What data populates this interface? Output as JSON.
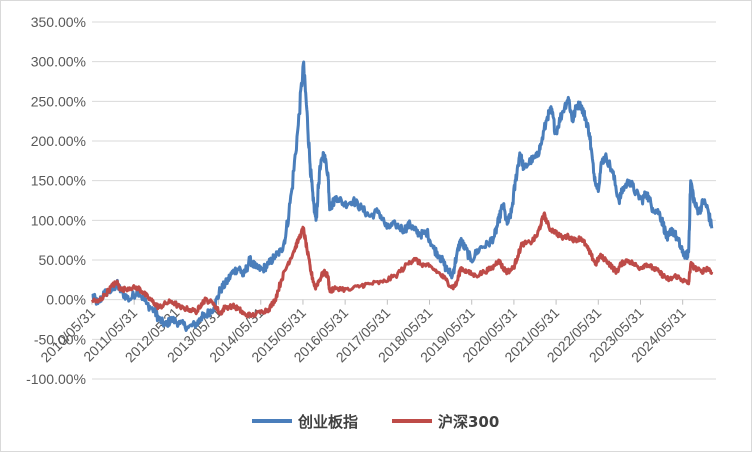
{
  "chart_data": {
    "type": "line",
    "title": "",
    "xlabel": "",
    "ylabel": "",
    "ylim": [
      -100,
      350
    ],
    "y_ticks": [
      "350.00%",
      "300.00%",
      "250.00%",
      "200.00%",
      "150.00%",
      "100.00%",
      "50.00%",
      "0.00%",
      "-50.00%",
      "-100.00%"
    ],
    "y_tick_values": [
      350,
      300,
      250,
      200,
      150,
      100,
      50,
      0,
      -50,
      -100
    ],
    "x_tick_labels": [
      "2010/05/31",
      "2011/05/31",
      "2012/05/31",
      "2013/05/31",
      "2014/05/31",
      "2015/05/31",
      "2016/05/31",
      "2017/05/31",
      "2018/05/31",
      "2019/05/31",
      "2020/05/31",
      "2021/05/31",
      "2022/05/31",
      "2023/05/31",
      "2024/05/31"
    ],
    "x_tick_years": [
      2010.41,
      2011.41,
      2012.41,
      2013.41,
      2014.41,
      2015.41,
      2016.41,
      2017.41,
      2018.41,
      2019.41,
      2020.41,
      2021.41,
      2022.41,
      2023.41,
      2024.41
    ],
    "xlim": [
      2010.41,
      2025.2
    ],
    "grid": "horizontal",
    "legend_position": "bottom",
    "series": [
      {
        "name": "创业板指",
        "color": "#4a7ebb",
        "points": [
          [
            2010.42,
            5
          ],
          [
            2010.55,
            -5
          ],
          [
            2010.7,
            8
          ],
          [
            2010.9,
            12
          ],
          [
            2011.0,
            20
          ],
          [
            2011.1,
            10
          ],
          [
            2011.3,
            0
          ],
          [
            2011.5,
            12
          ],
          [
            2011.7,
            -5
          ],
          [
            2011.9,
            -15
          ],
          [
            2012.0,
            -25
          ],
          [
            2012.15,
            -32
          ],
          [
            2012.3,
            -25
          ],
          [
            2012.5,
            -30
          ],
          [
            2012.7,
            -35
          ],
          [
            2012.9,
            -30
          ],
          [
            2013.0,
            -22
          ],
          [
            2013.1,
            -20
          ],
          [
            2013.3,
            -10
          ],
          [
            2013.45,
            12
          ],
          [
            2013.6,
            22
          ],
          [
            2013.75,
            35
          ],
          [
            2013.9,
            40
          ],
          [
            2014.0,
            30
          ],
          [
            2014.15,
            50
          ],
          [
            2014.3,
            40
          ],
          [
            2014.45,
            38
          ],
          [
            2014.6,
            45
          ],
          [
            2014.75,
            55
          ],
          [
            2014.9,
            62
          ],
          [
            2015.0,
            80
          ],
          [
            2015.15,
            140
          ],
          [
            2015.3,
            220
          ],
          [
            2015.42,
            298
          ],
          [
            2015.5,
            240
          ],
          [
            2015.58,
            170
          ],
          [
            2015.65,
            125
          ],
          [
            2015.72,
            100
          ],
          [
            2015.8,
            160
          ],
          [
            2015.9,
            185
          ],
          [
            2016.0,
            160
          ],
          [
            2016.05,
            115
          ],
          [
            2016.2,
            130
          ],
          [
            2016.4,
            120
          ],
          [
            2016.6,
            125
          ],
          [
            2016.8,
            115
          ],
          [
            2017.0,
            105
          ],
          [
            2017.2,
            112
          ],
          [
            2017.4,
            90
          ],
          [
            2017.6,
            95
          ],
          [
            2017.8,
            88
          ],
          [
            2017.95,
            95
          ],
          [
            2018.05,
            88
          ],
          [
            2018.2,
            82
          ],
          [
            2018.35,
            85
          ],
          [
            2018.5,
            65
          ],
          [
            2018.65,
            55
          ],
          [
            2018.8,
            40
          ],
          [
            2018.95,
            30
          ],
          [
            2019.05,
            55
          ],
          [
            2019.15,
            75
          ],
          [
            2019.25,
            65
          ],
          [
            2019.4,
            50
          ],
          [
            2019.6,
            65
          ],
          [
            2019.8,
            70
          ],
          [
            2019.95,
            80
          ],
          [
            2020.05,
            100
          ],
          [
            2020.15,
            120
          ],
          [
            2020.25,
            95
          ],
          [
            2020.35,
            110
          ],
          [
            2020.45,
            150
          ],
          [
            2020.55,
            185
          ],
          [
            2020.65,
            165
          ],
          [
            2020.8,
            175
          ],
          [
            2020.95,
            180
          ],
          [
            2021.05,
            195
          ],
          [
            2021.2,
            230
          ],
          [
            2021.3,
            240
          ],
          [
            2021.4,
            210
          ],
          [
            2021.55,
            235
          ],
          [
            2021.7,
            255
          ],
          [
            2021.8,
            225
          ],
          [
            2021.9,
            245
          ],
          [
            2022.0,
            245
          ],
          [
            2022.1,
            230
          ],
          [
            2022.2,
            210
          ],
          [
            2022.3,
            160
          ],
          [
            2022.4,
            140
          ],
          [
            2022.5,
            175
          ],
          [
            2022.6,
            180
          ],
          [
            2022.75,
            160
          ],
          [
            2022.9,
            125
          ],
          [
            2023.0,
            140
          ],
          [
            2023.15,
            150
          ],
          [
            2023.3,
            135
          ],
          [
            2023.45,
            125
          ],
          [
            2023.55,
            135
          ],
          [
            2023.7,
            115
          ],
          [
            2023.85,
            110
          ],
          [
            2023.95,
            95
          ],
          [
            2024.05,
            75
          ],
          [
            2024.15,
            90
          ],
          [
            2024.3,
            75
          ],
          [
            2024.4,
            60
          ],
          [
            2024.5,
            55
          ],
          [
            2024.55,
            60
          ],
          [
            2024.6,
            150
          ],
          [
            2024.7,
            120
          ],
          [
            2024.8,
            110
          ],
          [
            2024.9,
            125
          ],
          [
            2025.0,
            115
          ],
          [
            2025.1,
            90
          ]
        ]
      },
      {
        "name": "沪深300",
        "color": "#be4b48",
        "points": [
          [
            2010.42,
            0
          ],
          [
            2010.55,
            -3
          ],
          [
            2010.7,
            5
          ],
          [
            2010.9,
            18
          ],
          [
            2011.0,
            22
          ],
          [
            2011.1,
            12
          ],
          [
            2011.3,
            15
          ],
          [
            2011.5,
            15
          ],
          [
            2011.6,
            10
          ],
          [
            2011.75,
            2
          ],
          [
            2011.9,
            -5
          ],
          [
            2012.0,
            -10
          ],
          [
            2012.15,
            -5
          ],
          [
            2012.3,
            -2
          ],
          [
            2012.5,
            -10
          ],
          [
            2012.7,
            -12
          ],
          [
            2012.9,
            -15
          ],
          [
            2013.0,
            -5
          ],
          [
            2013.1,
            0
          ],
          [
            2013.3,
            -5
          ],
          [
            2013.45,
            -18
          ],
          [
            2013.55,
            -10
          ],
          [
            2013.75,
            -8
          ],
          [
            2013.9,
            -12
          ],
          [
            2014.0,
            -18
          ],
          [
            2014.2,
            -20
          ],
          [
            2014.45,
            -15
          ],
          [
            2014.6,
            -12
          ],
          [
            2014.75,
            0
          ],
          [
            2014.9,
            25
          ],
          [
            2015.05,
            45
          ],
          [
            2015.2,
            62
          ],
          [
            2015.3,
            75
          ],
          [
            2015.42,
            90
          ],
          [
            2015.5,
            65
          ],
          [
            2015.6,
            35
          ],
          [
            2015.7,
            15
          ],
          [
            2015.8,
            25
          ],
          [
            2015.9,
            35
          ],
          [
            2016.0,
            30
          ],
          [
            2016.05,
            10
          ],
          [
            2016.2,
            15
          ],
          [
            2016.5,
            12
          ],
          [
            2016.8,
            18
          ],
          [
            2017.0,
            20
          ],
          [
            2017.3,
            22
          ],
          [
            2017.6,
            30
          ],
          [
            2017.9,
            45
          ],
          [
            2018.05,
            52
          ],
          [
            2018.2,
            45
          ],
          [
            2018.4,
            42
          ],
          [
            2018.6,
            35
          ],
          [
            2018.8,
            25
          ],
          [
            2018.95,
            15
          ],
          [
            2019.05,
            20
          ],
          [
            2019.15,
            40
          ],
          [
            2019.3,
            35
          ],
          [
            2019.5,
            30
          ],
          [
            2019.7,
            35
          ],
          [
            2019.9,
            40
          ],
          [
            2020.05,
            50
          ],
          [
            2020.15,
            40
          ],
          [
            2020.25,
            35
          ],
          [
            2020.4,
            40
          ],
          [
            2020.5,
            55
          ],
          [
            2020.6,
            70
          ],
          [
            2020.8,
            72
          ],
          [
            2020.95,
            80
          ],
          [
            2021.05,
            95
          ],
          [
            2021.12,
            108
          ],
          [
            2021.25,
            90
          ],
          [
            2021.4,
            85
          ],
          [
            2021.55,
            78
          ],
          [
            2021.7,
            80
          ],
          [
            2021.85,
            75
          ],
          [
            2022.0,
            78
          ],
          [
            2022.1,
            70
          ],
          [
            2022.25,
            55
          ],
          [
            2022.35,
            45
          ],
          [
            2022.45,
            55
          ],
          [
            2022.6,
            50
          ],
          [
            2022.75,
            40
          ],
          [
            2022.85,
            35
          ],
          [
            2022.95,
            45
          ],
          [
            2023.1,
            50
          ],
          [
            2023.25,
            45
          ],
          [
            2023.4,
            40
          ],
          [
            2023.55,
            45
          ],
          [
            2023.7,
            40
          ],
          [
            2023.85,
            35
          ],
          [
            2024.0,
            28
          ],
          [
            2024.1,
            25
          ],
          [
            2024.25,
            30
          ],
          [
            2024.4,
            25
          ],
          [
            2024.55,
            20
          ],
          [
            2024.6,
            45
          ],
          [
            2024.7,
            40
          ],
          [
            2024.85,
            35
          ],
          [
            2025.0,
            40
          ],
          [
            2025.1,
            35
          ]
        ]
      }
    ]
  }
}
